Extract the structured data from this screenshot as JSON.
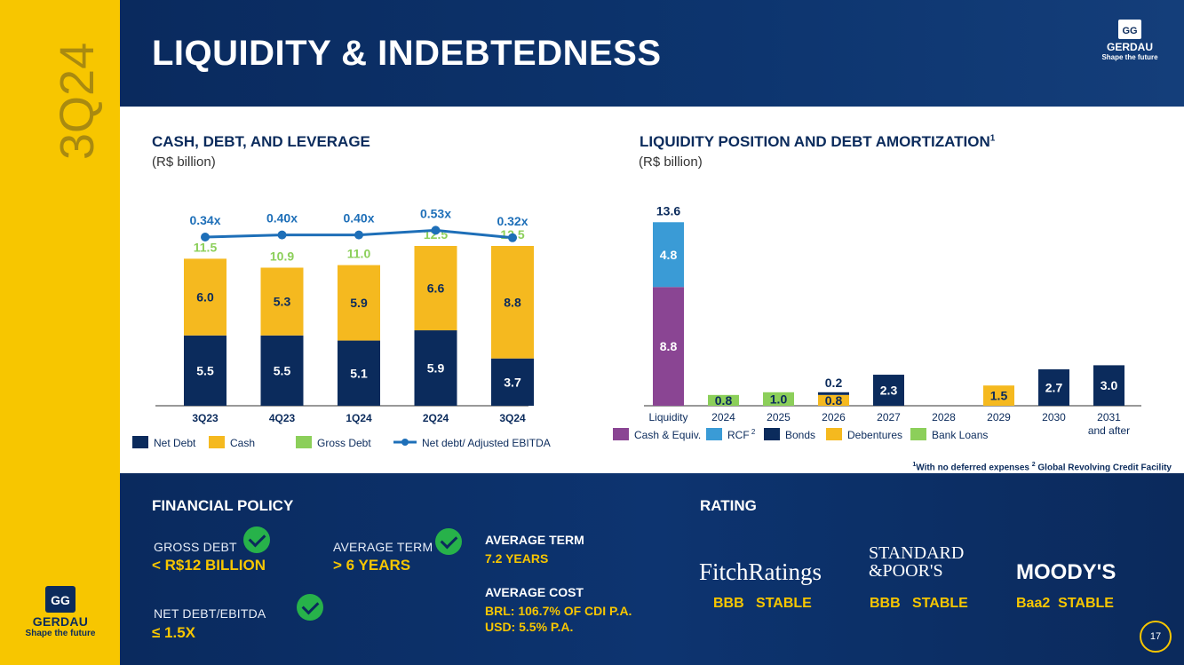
{
  "sidebar": {
    "quarter": "3Q24",
    "logo_brand": "GERDAU",
    "logo_tagline": "Shape the future"
  },
  "header": {
    "title": "LIQUIDITY & INDEBTEDNESS",
    "logo_brand": "GERDAU",
    "logo_tagline": "Shape the future"
  },
  "colors": {
    "navy": "#0b2b5c",
    "yellow": "#f5b91f",
    "green": "#8ccf5a",
    "blue_line": "#1e6fb8",
    "purple": "#8a4593",
    "light_blue": "#3a9bd6"
  },
  "chart_data": [
    {
      "type": "bar",
      "title": "CASH, DEBT, AND LEVERAGE",
      "subtitle": "(R$ billion)",
      "categories": [
        "3Q23",
        "4Q23",
        "1Q24",
        "2Q24",
        "3Q24"
      ],
      "series": [
        {
          "name": "Net Debt",
          "values": [
            5.5,
            5.5,
            5.1,
            5.9,
            3.7
          ],
          "labels": [
            "5.5",
            "5.5",
            "5.1",
            "5.9",
            "3.7"
          ]
        },
        {
          "name": "Cash",
          "values": [
            6.0,
            5.3,
            5.9,
            6.6,
            8.8
          ],
          "labels": [
            "6.0",
            "5.3",
            "5.9",
            "6.6",
            "8.8"
          ]
        },
        {
          "name": "Gross Debt",
          "values": [
            11.5,
            10.9,
            11.0,
            12.5,
            12.5
          ],
          "labels": [
            "11.5",
            "10.9",
            "11.0",
            "12.5",
            "12.5"
          ]
        },
        {
          "name": "Net debt/ Adjusted EBITDA",
          "values": [
            0.34,
            0.4,
            0.4,
            0.53,
            0.32
          ],
          "labels": [
            "0.34x",
            "0.40x",
            "0.40x",
            "0.53x",
            "0.32x"
          ]
        }
      ],
      "legend": [
        "Net Debt",
        "Cash",
        "Gross Debt",
        "Net debt/ Adjusted EBITDA"
      ]
    },
    {
      "type": "bar",
      "title": "LIQUIDITY POSITION AND DEBT AMORTIZATION",
      "title_sup": "1",
      "subtitle": "(R$ billion)",
      "categories": [
        "Liquidity",
        "2024",
        "2025",
        "2026",
        "2027",
        "2028",
        "2029",
        "2030",
        "2031 and after"
      ],
      "category_lines": [
        [
          "Liquidity"
        ],
        [
          "2024"
        ],
        [
          "2025"
        ],
        [
          "2026"
        ],
        [
          "2027"
        ],
        [
          "2028"
        ],
        [
          "2029"
        ],
        [
          "2030"
        ],
        [
          "2031",
          "and after"
        ]
      ],
      "liquidity": {
        "total": 13.6,
        "total_label": "13.6",
        "cash": 8.8,
        "cash_label": "8.8",
        "rcf": 4.8,
        "rcf_label": "4.8"
      },
      "amortization": [
        {
          "category": "2024",
          "type": "Bank Loans",
          "value": 0.8,
          "label": "0.8"
        },
        {
          "category": "2025",
          "type": "Bank Loans",
          "value": 1.0,
          "label": "1.0"
        },
        {
          "category": "2026",
          "type": "Debentures",
          "value": 0.8,
          "label": "0.8"
        },
        {
          "category": "2026",
          "type": "Bonds",
          "value": 0.2,
          "label": "0.2"
        },
        {
          "category": "2027",
          "type": "Bonds",
          "value": 2.3,
          "label": "2.3"
        },
        {
          "category": "2029",
          "type": "Debentures",
          "value": 1.5,
          "label": "1.5"
        },
        {
          "category": "2030",
          "type": "Bonds",
          "value": 2.7,
          "label": "2.7"
        },
        {
          "category": "2031 and after",
          "type": "Bonds",
          "value": 3.0,
          "label": "3.0"
        }
      ],
      "legend": [
        {
          "label": "Cash & Equiv.",
          "sup": ""
        },
        {
          "label": "RCF",
          "sup": "2"
        },
        {
          "label": "Bonds",
          "sup": ""
        },
        {
          "label": "Debentures",
          "sup": ""
        },
        {
          "label": "Bank Loans",
          "sup": ""
        }
      ]
    }
  ],
  "footnote": {
    "sup1": "1",
    "text1": "With no deferred expenses ",
    "sup2": "2",
    "text2": " Global Revolving Credit Facility"
  },
  "financial_policy": {
    "title": "FINANCIAL POLICY",
    "items": [
      {
        "label": "GROSS DEBT",
        "value": "< R$12 BILLION"
      },
      {
        "label": "AVERAGE TERM",
        "value": "> 6 YEARS"
      },
      {
        "label": "NET DEBT/EBITDA",
        "value": "≤ 1.5X"
      }
    ],
    "average_term": {
      "label": "AVERAGE TERM",
      "value": "7.2 YEARS"
    },
    "average_cost": {
      "label": "AVERAGE COST",
      "brl": "BRL: 106.7% OF CDI P.A.",
      "usd": "USD: 5.5% P.A."
    }
  },
  "rating": {
    "title": "RATING",
    "agencies": [
      {
        "name": "FitchRatings",
        "rating": "BBB",
        "outlook": "STABLE"
      },
      {
        "name_line1": "STANDARD",
        "name_line2": "&POOR'S",
        "rating": "BBB",
        "outlook": "STABLE"
      },
      {
        "name": "MOODY'S",
        "rating": "Baa2",
        "outlook": "STABLE"
      }
    ]
  },
  "page_number": "17"
}
